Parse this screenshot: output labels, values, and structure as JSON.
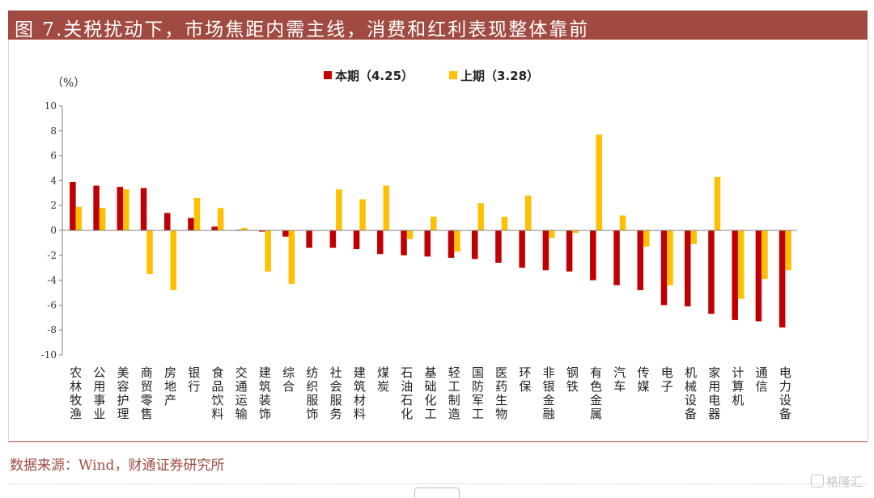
{
  "title": "图 7.关税扰动下，市场焦距内需主线，消费和红利表现整体靠前",
  "source": "数据来源：Wind，财通证券研究所",
  "watermark": "格隆汇",
  "colors": {
    "title_bg": "#a04a41",
    "series_current": "#c00000",
    "series_previous": "#ffc000"
  },
  "chart_data": {
    "type": "bar",
    "unit_label": "（%）",
    "ylim": [
      -10,
      10
    ],
    "yticks": [
      10,
      8,
      6,
      4,
      2,
      0,
      -2,
      -4,
      -6,
      -8,
      -10
    ],
    "grid": false,
    "legend_position": "top-center",
    "categories": [
      "农林牧渔",
      "公用事业",
      "美容护理",
      "商贸零售",
      "房地产",
      "银行",
      "食品饮料",
      "交通运输",
      "建筑装饰",
      "综合",
      "纺织服饰",
      "社会服务",
      "建筑材料",
      "煤炭",
      "石油石化",
      "基础化工",
      "轻工制造",
      "国防军工",
      "医药生物",
      "环保",
      "非银金融",
      "钢铁",
      "有色金属",
      "汽车",
      "传媒",
      "电子",
      "机械设备",
      "家用电器",
      "计算机",
      "通信",
      "电力设备"
    ],
    "series": [
      {
        "name": "本期（4.25）",
        "color": "#c00000",
        "values": [
          3.9,
          3.6,
          3.5,
          3.4,
          1.4,
          1.0,
          0.3,
          0.05,
          -0.1,
          -0.5,
          -1.4,
          -1.4,
          -1.5,
          -1.9,
          -2.0,
          -2.1,
          -2.2,
          -2.3,
          -2.6,
          -3.0,
          -3.2,
          -3.3,
          -4.0,
          -4.4,
          -4.8,
          -6.0,
          -6.1,
          -6.7,
          -7.2,
          -7.3,
          -7.8
        ]
      },
      {
        "name": "上期（3.28）",
        "color": "#ffc000",
        "values": [
          1.9,
          1.8,
          3.3,
          -3.5,
          -4.8,
          2.6,
          1.8,
          0.2,
          -3.3,
          -4.3,
          0.0,
          3.3,
          2.5,
          3.6,
          -0.7,
          1.1,
          -1.7,
          2.2,
          1.1,
          2.8,
          -0.6,
          -0.2,
          7.7,
          1.2,
          -1.3,
          -4.4,
          -1.1,
          4.3,
          -5.5,
          -3.9,
          -3.2
        ]
      }
    ]
  }
}
